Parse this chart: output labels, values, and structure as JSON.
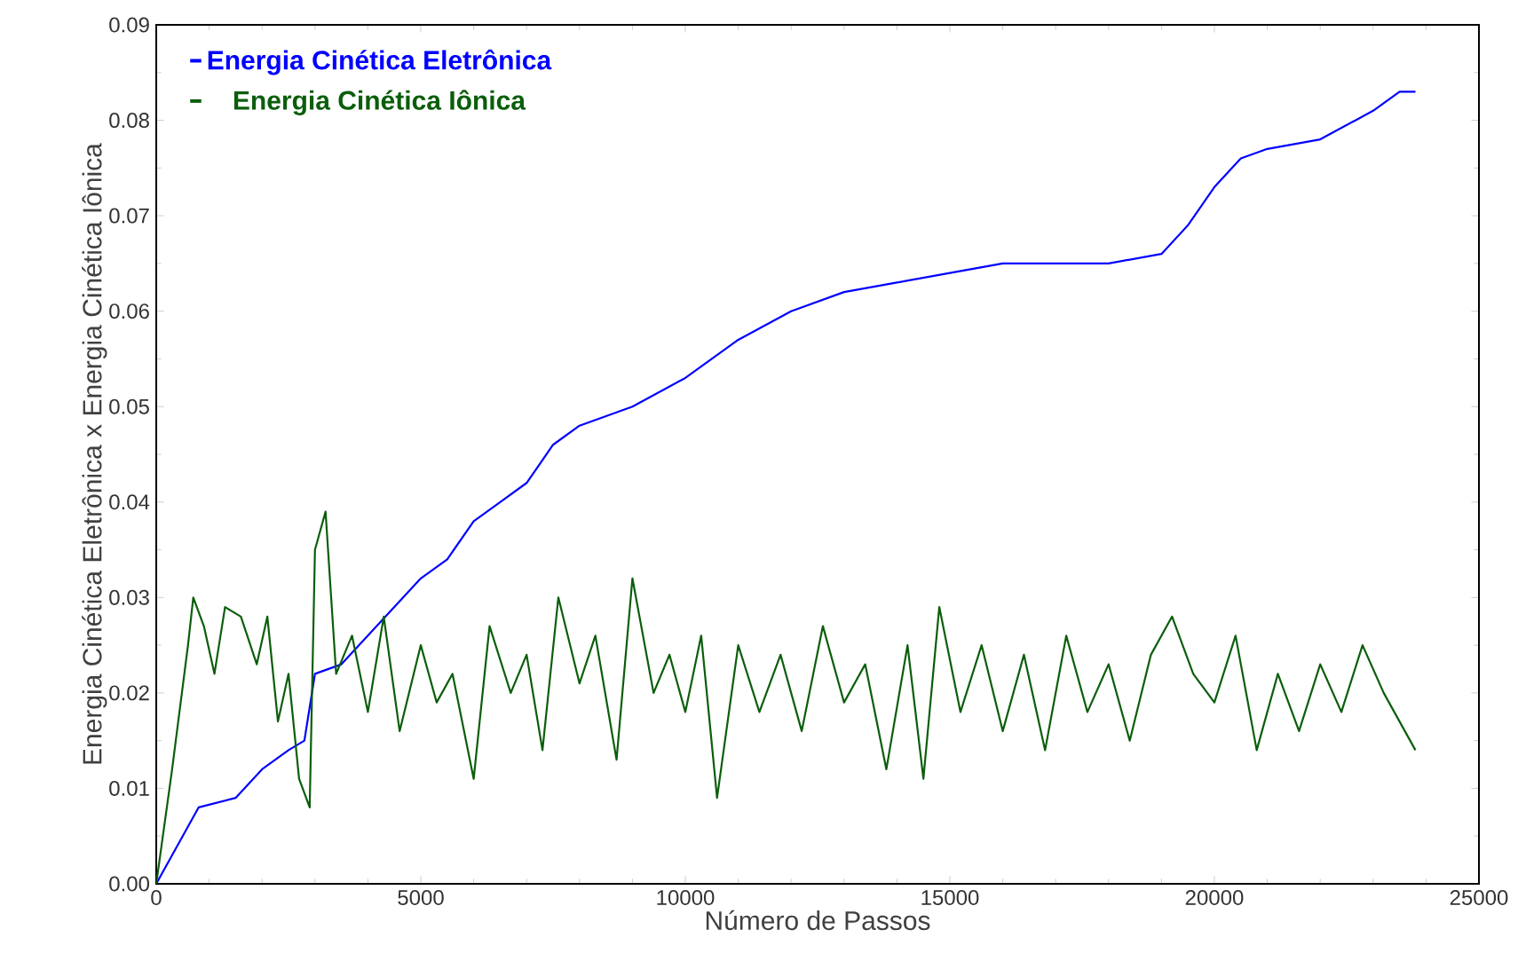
{
  "chart_data": {
    "type": "line",
    "xlabel": "Número de Passos",
    "ylabel": "Energia Cinética Eletrônica x Energia Cinética Iônica",
    "xlim": [
      0,
      25000
    ],
    "xticks": [
      0,
      5000,
      10000,
      15000,
      20000,
      25000
    ],
    "ylim": [
      0,
      0.09
    ],
    "yticks": [
      {
        "value": 0,
        "label": "0.00"
      },
      {
        "value": 0.01,
        "label": "0.01"
      },
      {
        "value": 0.02,
        "label": "0.02"
      },
      {
        "value": 0.03,
        "label": "0.03"
      },
      {
        "value": 0.04,
        "label": "0.04"
      },
      {
        "value": 0.05,
        "label": "0.05"
      },
      {
        "value": 0.06,
        "label": "0.06"
      },
      {
        "value": 0.07,
        "label": "0.07"
      },
      {
        "value": 0.08,
        "label": "0.08"
      },
      {
        "value": 0.09,
        "label": "0.09"
      }
    ],
    "legend": "top left",
    "marker": "none",
    "line_style": "solid",
    "grid": false,
    "series": [
      {
        "name": "Energia Cinética Eletrônica",
        "color": "#0000ff",
        "x": [
          0,
          500,
          800,
          1500,
          2000,
          2500,
          2800,
          3000,
          3500,
          4000,
          4500,
          5000,
          5500,
          6000,
          6500,
          7000,
          7500,
          8000,
          9000,
          10000,
          10500,
          11000,
          12000,
          13000,
          14000,
          15000,
          16000,
          17000,
          18000,
          19000,
          19500,
          20000,
          20500,
          21000,
          22000,
          23000,
          23500,
          23800
        ],
        "values": [
          0,
          0.005,
          0.008,
          0.009,
          0.012,
          0.014,
          0.015,
          0.022,
          0.023,
          0.026,
          0.029,
          0.032,
          0.034,
          0.038,
          0.04,
          0.042,
          0.046,
          0.048,
          0.05,
          0.053,
          0.055,
          0.057,
          0.06,
          0.062,
          0.063,
          0.064,
          0.065,
          0.065,
          0.065,
          0.066,
          0.069,
          0.073,
          0.076,
          0.077,
          0.078,
          0.081,
          0.083,
          0.083
        ]
      },
      {
        "name": "Energia Cinética Iônica",
        "color": "#0b5e0b",
        "x": [
          0,
          300,
          600,
          700,
          900,
          1100,
          1300,
          1600,
          1900,
          2100,
          2300,
          2500,
          2700,
          2900,
          3000,
          3200,
          3400,
          3700,
          4000,
          4300,
          4600,
          5000,
          5300,
          5600,
          6000,
          6300,
          6700,
          7000,
          7300,
          7600,
          8000,
          8300,
          8700,
          9000,
          9400,
          9700,
          10000,
          10300,
          10600,
          11000,
          11400,
          11800,
          12200,
          12600,
          13000,
          13400,
          13800,
          14200,
          14500,
          14800,
          15200,
          15600,
          16000,
          16400,
          16800,
          17200,
          17600,
          18000,
          18400,
          18800,
          19200,
          19600,
          20000,
          20400,
          20800,
          21200,
          21600,
          22000,
          22400,
          22800,
          23200,
          23500,
          23800
        ],
        "values": [
          0,
          0.012,
          0.025,
          0.03,
          0.027,
          0.022,
          0.029,
          0.028,
          0.023,
          0.028,
          0.017,
          0.022,
          0.011,
          0.008,
          0.035,
          0.039,
          0.022,
          0.026,
          0.018,
          0.028,
          0.016,
          0.025,
          0.019,
          0.022,
          0.011,
          0.027,
          0.02,
          0.024,
          0.014,
          0.03,
          0.021,
          0.026,
          0.013,
          0.032,
          0.02,
          0.024,
          0.018,
          0.026,
          0.009,
          0.025,
          0.018,
          0.024,
          0.016,
          0.027,
          0.019,
          0.023,
          0.012,
          0.025,
          0.011,
          0.029,
          0.018,
          0.025,
          0.016,
          0.024,
          0.014,
          0.026,
          0.018,
          0.023,
          0.015,
          0.024,
          0.028,
          0.022,
          0.019,
          0.026,
          0.014,
          0.022,
          0.016,
          0.023,
          0.018,
          0.025,
          0.02,
          0.017,
          0.014
        ]
      }
    ]
  }
}
